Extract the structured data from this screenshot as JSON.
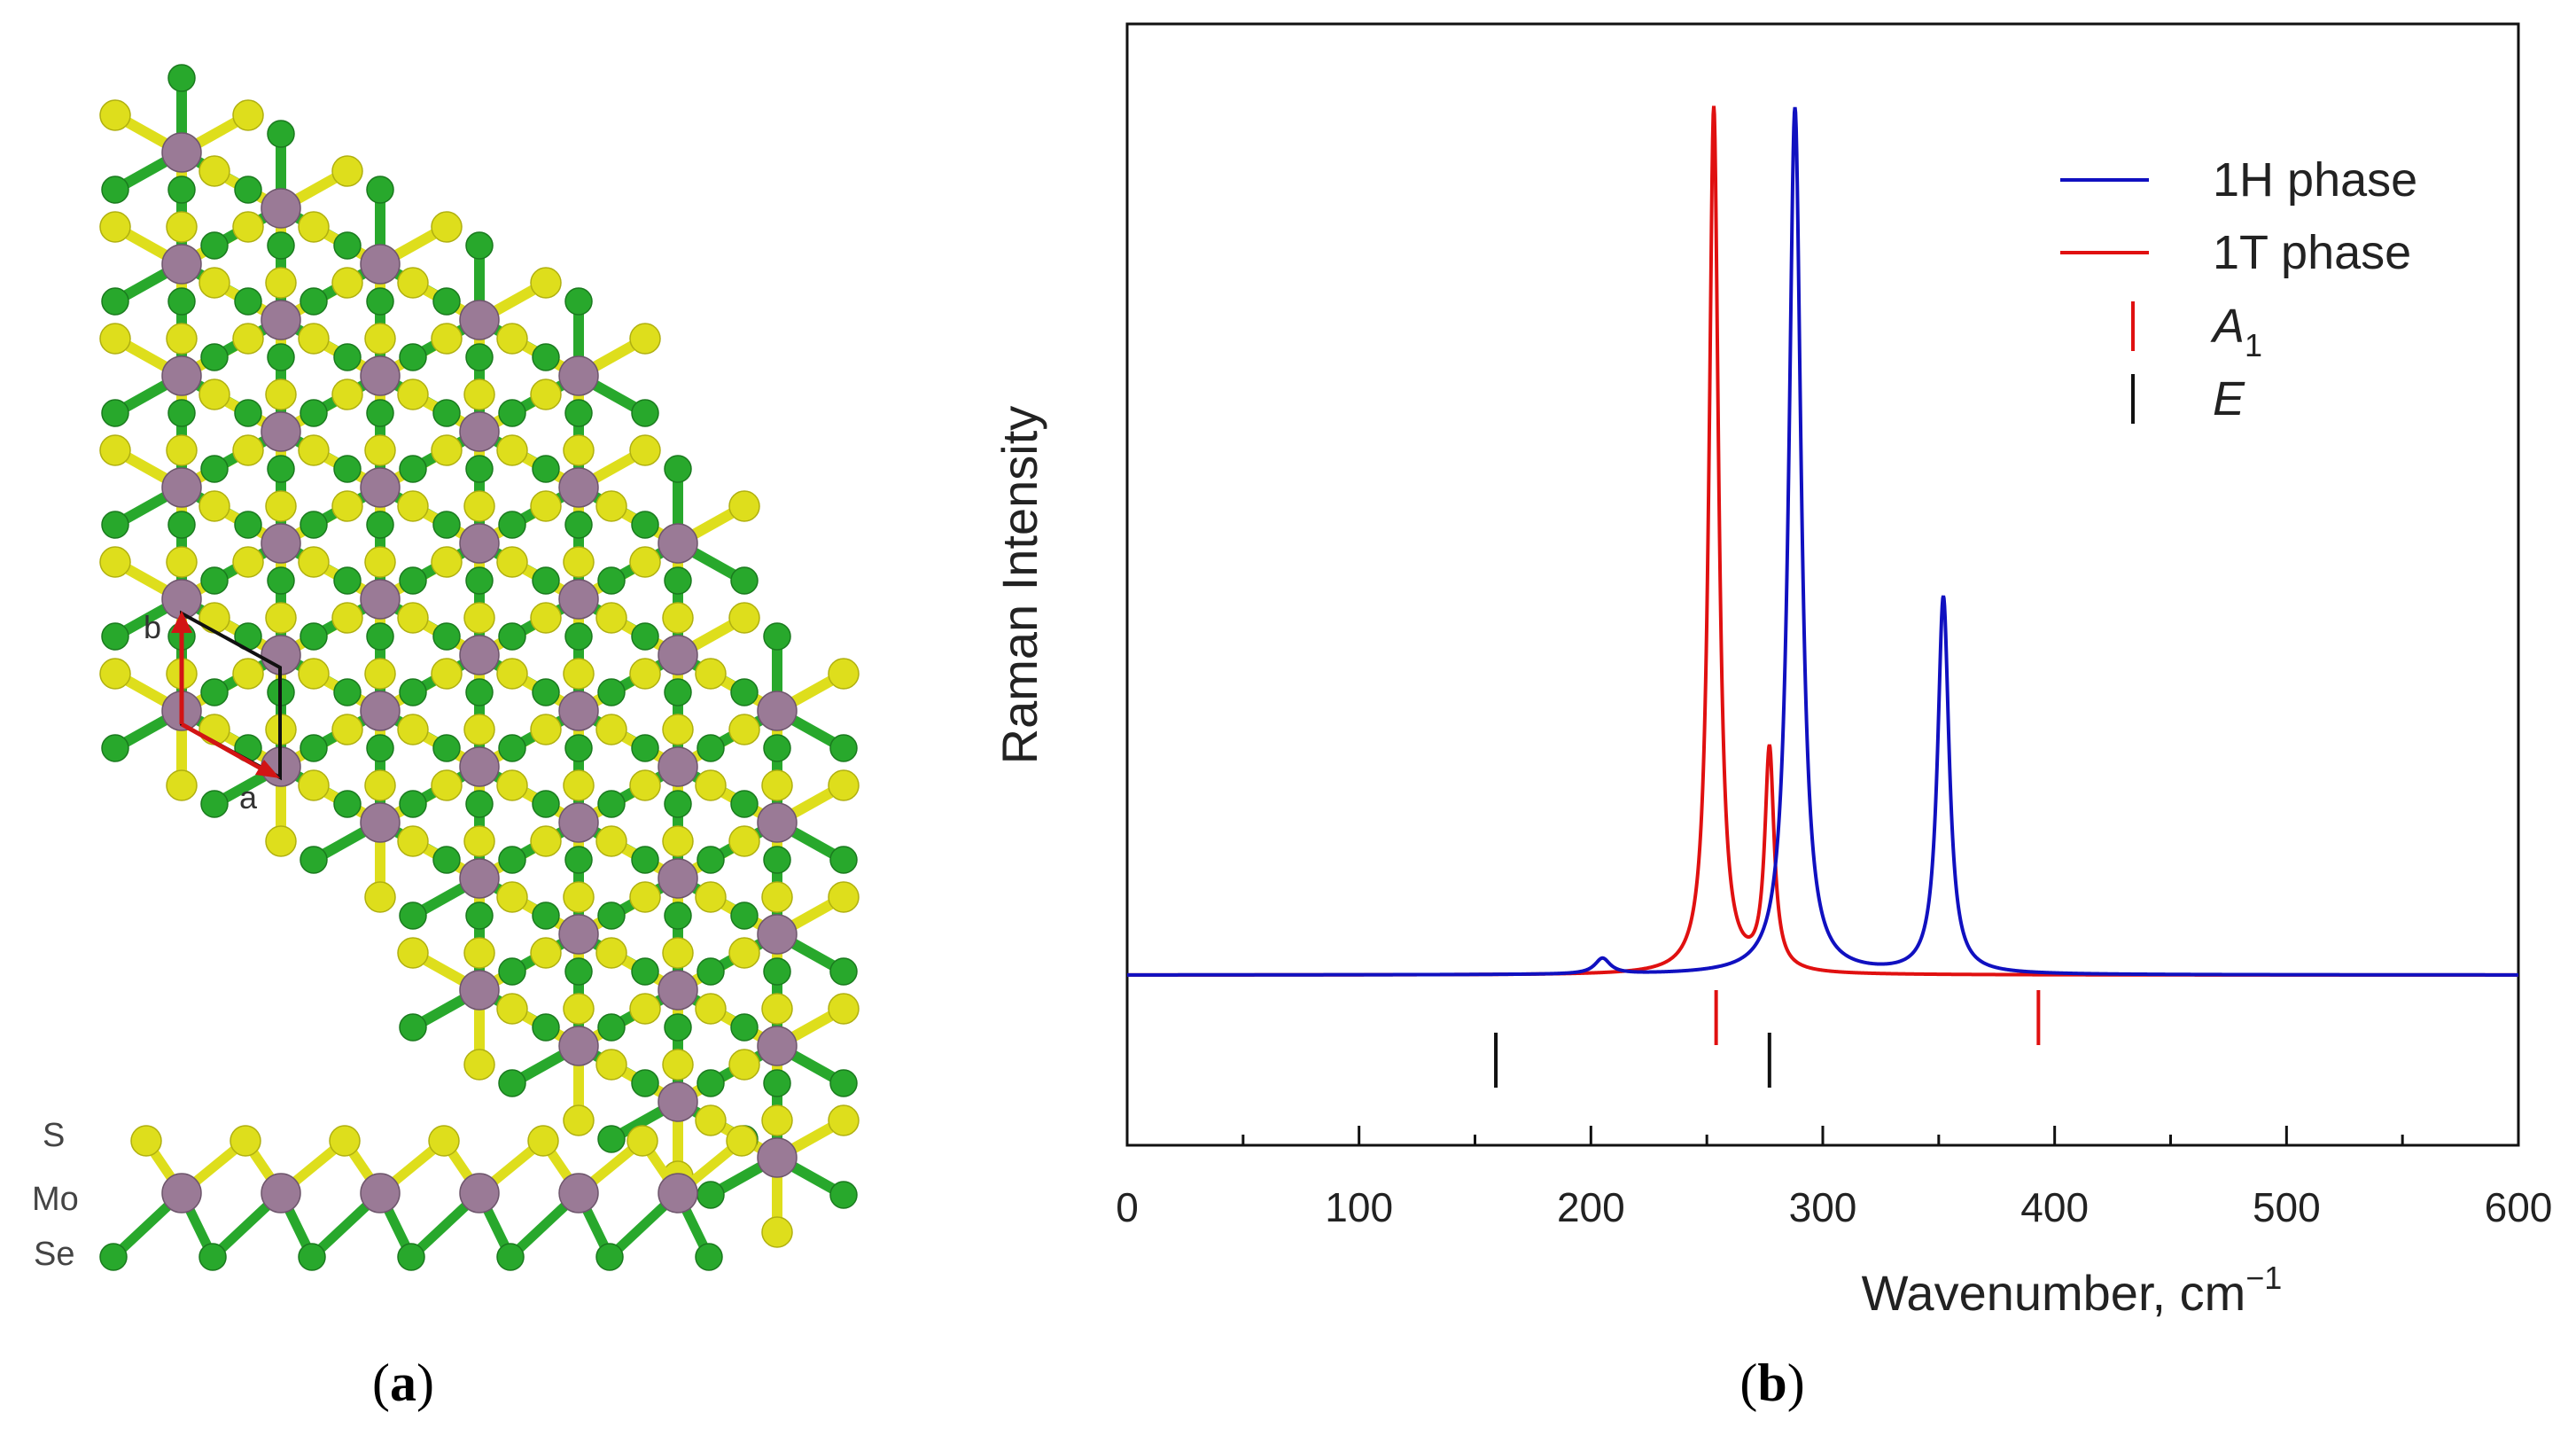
{
  "panel_a": {
    "caption_letter": "a",
    "lattice_labels": {
      "a": "a",
      "b": "b"
    },
    "side_view_labels": [
      "S",
      "Mo",
      "Se"
    ],
    "colors": {
      "Mo": "#9a7a96",
      "S": "#dede1c",
      "Se": "#28a82c",
      "bond_Mo": "#b99ab6"
    }
  },
  "panel_b": {
    "caption_letter": "b"
  },
  "chart_data": {
    "type": "line",
    "xlabel": "Wavenumber, cm",
    "xlabel_sup": "−1",
    "ylabel": "Raman Intensity",
    "xlim": [
      0,
      600
    ],
    "ylim": [
      0,
      1
    ],
    "xticks": [
      0,
      100,
      200,
      300,
      400,
      500,
      600
    ],
    "legend_position": "top-right",
    "series": [
      {
        "name": "1H phase",
        "color": "#1010c0",
        "peaks": [
          {
            "center": 205,
            "height": 0.018,
            "width": 4
          },
          {
            "center": 288,
            "height": 1.0,
            "width": 3.2
          },
          {
            "center": 352,
            "height": 0.435,
            "width": 3.0
          }
        ]
      },
      {
        "name": "1T phase",
        "color": "#e01010",
        "peaks": [
          {
            "center": 253,
            "height": 1.0,
            "width": 2.5
          },
          {
            "center": 277,
            "height": 0.255,
            "width": 2.4
          }
        ]
      }
    ],
    "mode_markers": [
      {
        "name": "A",
        "sub": "1",
        "color": "#e01010",
        "positions": [
          254,
          393
        ]
      },
      {
        "name": "E",
        "sub": "",
        "color": "#111111",
        "positions": [
          159,
          277
        ]
      }
    ]
  }
}
